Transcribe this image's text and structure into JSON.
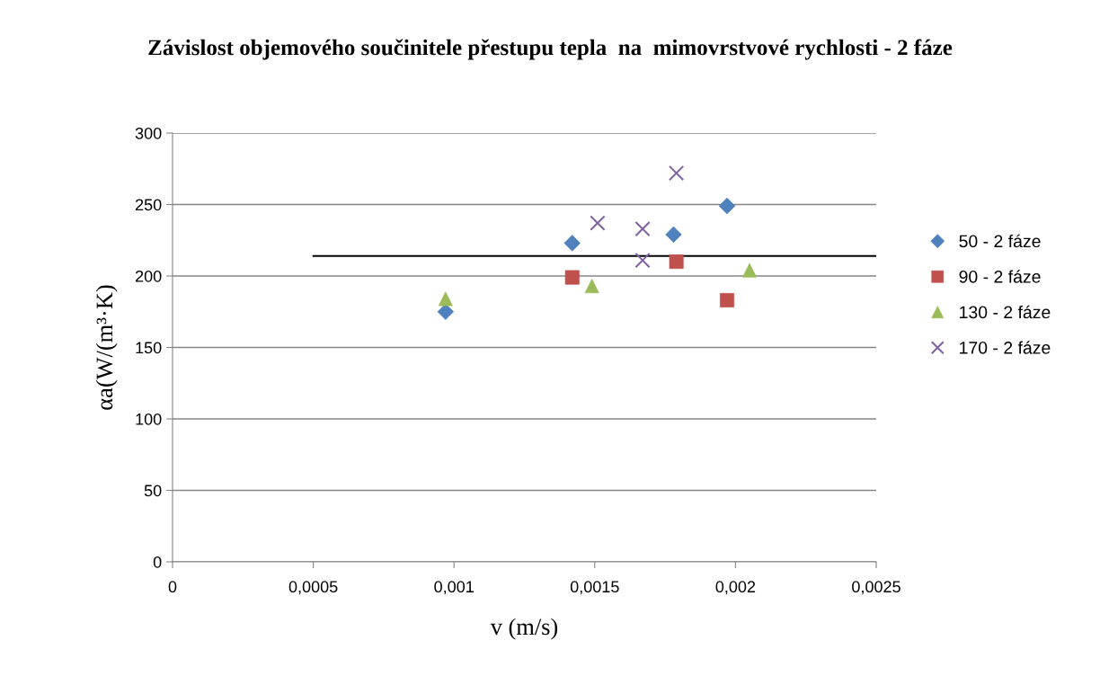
{
  "chart_data": {
    "type": "scatter",
    "title": "Závislost objemového součinitele přestupu tepla  na  mimovrstvové rychlosti - 2 fáze",
    "xlabel": "v (m/s)",
    "ylabel": "αa(W/(m³·K)",
    "series": [
      {
        "name": "50 - 2 fáze",
        "color": "#4f81bd",
        "marker": "diamond",
        "x": [
          0.00097,
          0.00142,
          0.00178,
          0.00197
        ],
        "values": [
          175,
          223,
          229,
          249
        ]
      },
      {
        "name": "90 - 2 fáze",
        "color": "#c0504d",
        "marker": "square",
        "x": [
          0.00142,
          0.00179,
          0.00197
        ],
        "values": [
          199,
          210,
          183
        ]
      },
      {
        "name": "130 - 2 fáze",
        "color": "#9bbb59",
        "marker": "triangle",
        "x": [
          0.00097,
          0.00149,
          0.00205
        ],
        "values": [
          184,
          193,
          204
        ]
      },
      {
        "name": "170 - 2 fáze",
        "color": "#8064a2",
        "marker": "cross",
        "x": [
          0.00151,
          0.00167,
          0.00167,
          0.00179
        ],
        "values": [
          237,
          233,
          211,
          272
        ]
      },
      {
        "type": "line",
        "color": "#000000",
        "marker": "none",
        "x": [
          0.0005,
          0.0025
        ],
        "values": [
          214,
          214
        ]
      }
    ],
    "xlim": [
      0,
      0.0025
    ],
    "xticks": [
      0,
      {
        "value": 0.0005,
        "label": "0,0005"
      },
      {
        "value": 0.001,
        "label": "0,001"
      },
      {
        "value": 0.0015,
        "label": "0,0015"
      },
      {
        "value": 0.002,
        "label": "0,002"
      },
      {
        "value": 0.0025,
        "label": "0,0025"
      }
    ],
    "ylim": [
      0,
      300
    ],
    "yticks": [
      0,
      50,
      100,
      150,
      200,
      250,
      300
    ],
    "grid": "y",
    "legend": "right"
  }
}
